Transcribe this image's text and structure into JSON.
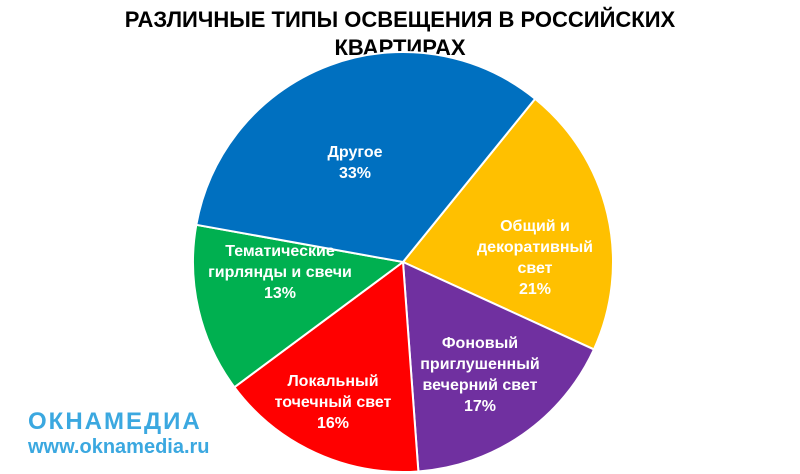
{
  "chart_data": {
    "type": "pie",
    "title": "РАЗЛИЧНЫЕ ТИПЫ ОСВЕЩЕНИЯ В РОССИЙСКИХ КВАРТИРАХ",
    "categories": [
      "Общий и\nдекоративный\nсвет",
      "Фоновый\nприглушенный\nвечерний свет",
      "Локальный\nточечный свет",
      "Тематические\nгирлянды и свечи",
      "Другое"
    ],
    "values": [
      21,
      17,
      16,
      13,
      33
    ],
    "value_labels": [
      "21%",
      "17%",
      "16%",
      "13%",
      "33%"
    ],
    "colors": [
      "#ffc000",
      "#7030a0",
      "#ff0000",
      "#00b050",
      "#0070c0"
    ]
  },
  "watermark": {
    "logo": "ОКНАМЕДИА",
    "url": "www.oknamedia.ru"
  }
}
